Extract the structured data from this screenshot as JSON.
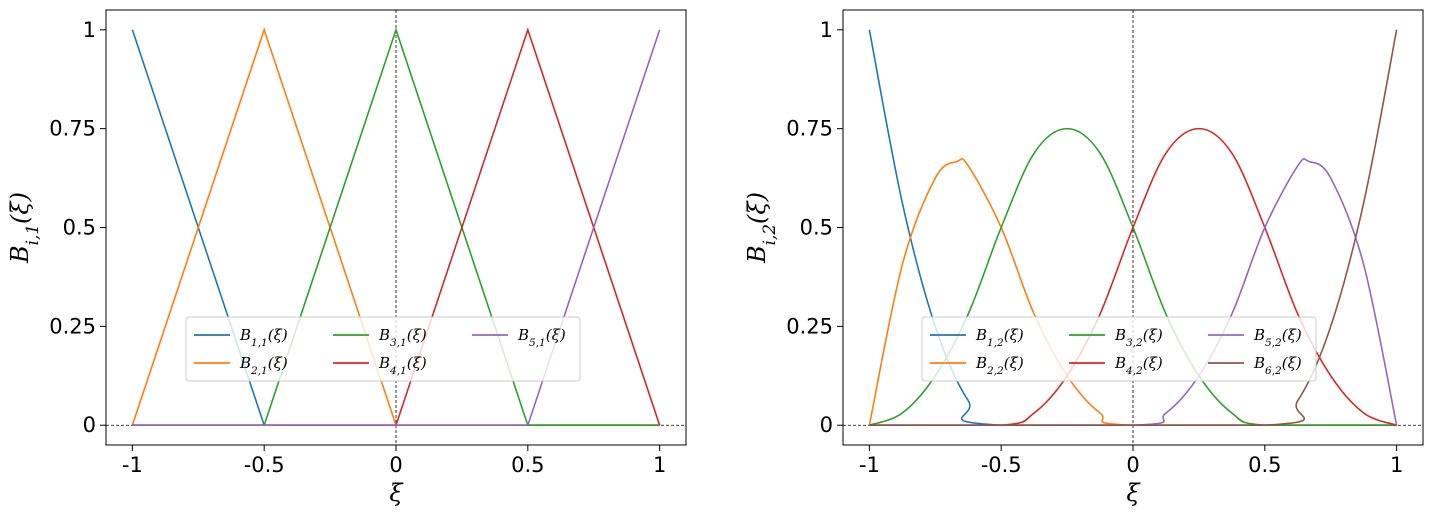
{
  "chart_data": [
    {
      "type": "line",
      "xlabel": "ξ",
      "ylabel": "B_{i,1}(ξ)",
      "xlim": [
        -1.1,
        1.1
      ],
      "ylim": [
        -0.05,
        1.05
      ],
      "xticks": [
        -1,
        -0.5,
        0,
        0.5,
        1
      ],
      "xtick_labels": [
        "-1",
        "-0.5",
        "0",
        "0.5",
        "1"
      ],
      "yticks": [
        0,
        0.25,
        0.5,
        0.75,
        1
      ],
      "ytick_labels": [
        "0",
        "0.25",
        "0.5",
        "0.75",
        "1"
      ],
      "grid": false,
      "reference_lines": {
        "x": 0,
        "y": 0,
        "style": "dashed"
      },
      "legend": {
        "placement": "lower center",
        "columns": 3
      },
      "series": [
        {
          "name": "B_{1,1}(ξ)",
          "color": "#1f77b4",
          "x": [
            -1,
            -0.5,
            1
          ],
          "y": [
            1,
            0,
            0
          ]
        },
        {
          "name": "B_{2,1}(ξ)",
          "color": "#ff7f0e",
          "x": [
            -1,
            -0.5,
            0,
            1
          ],
          "y": [
            0,
            1,
            0,
            0
          ]
        },
        {
          "name": "B_{3,1}(ξ)",
          "color": "#2ca02c",
          "x": [
            -1,
            -0.5,
            0,
            0.5,
            1
          ],
          "y": [
            0,
            0,
            1,
            0,
            0
          ]
        },
        {
          "name": "B_{4,1}(ξ)",
          "color": "#d62728",
          "x": [
            -1,
            0,
            0.5,
            1
          ],
          "y": [
            0,
            0,
            1,
            0
          ]
        },
        {
          "name": "B_{5,1}(ξ)",
          "color": "#9467bd",
          "x": [
            -1,
            0.5,
            1
          ],
          "y": [
            0,
            0,
            1
          ]
        }
      ]
    },
    {
      "type": "line",
      "xlabel": "ξ",
      "ylabel": "B_{i,2}(ξ)",
      "xlim": [
        -1.1,
        1.1
      ],
      "ylim": [
        -0.05,
        1.05
      ],
      "xticks": [
        -1,
        -0.5,
        0,
        0.5,
        1
      ],
      "xtick_labels": [
        "-1",
        "-0.5",
        "0",
        "0.5",
        "1"
      ],
      "yticks": [
        0,
        0.25,
        0.5,
        0.75,
        1
      ],
      "ytick_labels": [
        "0",
        "0.25",
        "0.5",
        "0.75",
        "1"
      ],
      "grid": false,
      "reference_lines": {
        "x": 0,
        "y": 0,
        "style": "dashed"
      },
      "legend": {
        "placement": "lower center",
        "columns": 3
      },
      "series": [
        {
          "name": "B_{1,2}(ξ)",
          "color": "#1f77b4",
          "x": [
            -1,
            -0.875,
            -0.75,
            -0.625,
            -0.5,
            1
          ],
          "y": [
            1,
            0.5625,
            0.25,
            0.0625,
            0,
            0
          ]
        },
        {
          "name": "B_{2,2}(ξ)",
          "color": "#ff7f0e",
          "x": [
            -1,
            -0.875,
            -0.75,
            -0.667,
            -0.625,
            -0.5,
            -0.375,
            -0.25,
            -0.125,
            0,
            1
          ],
          "y": [
            0,
            0.406,
            0.625,
            0.667,
            0.656,
            0.5,
            0.281,
            0.125,
            0.031,
            0,
            0
          ]
        },
        {
          "name": "B_{3,2}(ξ)",
          "color": "#2ca02c",
          "x": [
            -1,
            -0.875,
            -0.75,
            -0.625,
            -0.5,
            -0.375,
            -0.25,
            -0.125,
            0,
            0.125,
            0.25,
            0.375,
            0.5,
            1
          ],
          "y": [
            0,
            0.031,
            0.125,
            0.281,
            0.5,
            0.688,
            0.75,
            0.688,
            0.5,
            0.281,
            0.125,
            0.031,
            0,
            0
          ]
        },
        {
          "name": "B_{4,2}(ξ)",
          "color": "#d62728",
          "x": [
            -1,
            -0.5,
            -0.375,
            -0.25,
            -0.125,
            0,
            0.125,
            0.25,
            0.375,
            0.5,
            0.625,
            0.75,
            0.875,
            1
          ],
          "y": [
            0,
            0,
            0.031,
            0.125,
            0.281,
            0.5,
            0.688,
            0.75,
            0.688,
            0.5,
            0.281,
            0.125,
            0.031,
            0
          ]
        },
        {
          "name": "B_{5,2}(ξ)",
          "color": "#9467bd",
          "x": [
            -1,
            0,
            0.125,
            0.25,
            0.375,
            0.5,
            0.625,
            0.667,
            0.75,
            0.875,
            1
          ],
          "y": [
            0,
            0,
            0.031,
            0.125,
            0.281,
            0.5,
            0.656,
            0.667,
            0.625,
            0.406,
            0
          ]
        },
        {
          "name": "B_{6,2}(ξ)",
          "color": "#8c564b",
          "x": [
            -1,
            0.5,
            0.625,
            0.75,
            0.875,
            1
          ],
          "y": [
            0,
            0,
            0.0625,
            0.25,
            0.5625,
            1
          ]
        }
      ]
    }
  ]
}
